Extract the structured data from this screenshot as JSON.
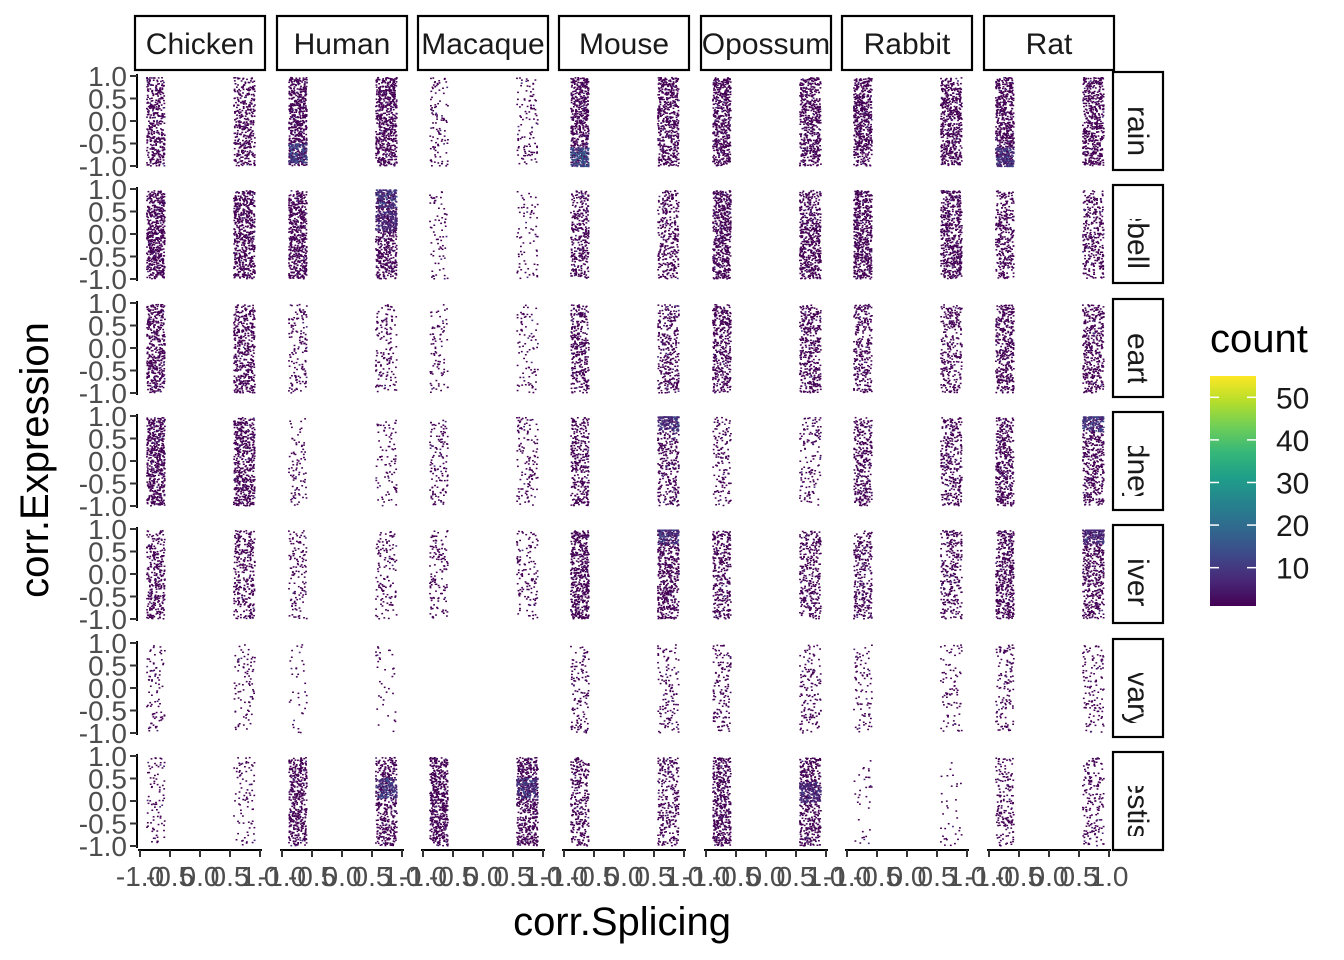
{
  "chart_data": {
    "type": "heatmap",
    "subtype": "faceted 2d histogram (geom_bin2d)",
    "xlabel": "corr.Splicing",
    "ylabel": "corr.Expression",
    "xlim": [
      -1,
      1
    ],
    "ylim": [
      -1,
      1
    ],
    "x_ticks": [
      "-1.0",
      "-0.5",
      "0.0",
      "0.5",
      "1.0"
    ],
    "y_ticks": [
      "-1.0",
      "-0.5",
      "0.0",
      "0.5",
      "1.0"
    ],
    "columns": [
      "Chicken",
      "Human",
      "Macaque",
      "Mouse",
      "Opossum",
      "Rabbit",
      "Rat"
    ],
    "rows": [
      "Brain",
      "Cerebellum",
      "Heart",
      "Kidney",
      "Liver",
      "Ovary",
      "Testis"
    ],
    "legend": {
      "title": "count",
      "position": "right",
      "ticks": [
        10,
        20,
        30,
        40,
        50
      ],
      "range": [
        1,
        55
      ],
      "palette": "viridis",
      "colors": [
        "#440154",
        "#482878",
        "#3e4989",
        "#31688e",
        "#26828e",
        "#1f9e89",
        "#35b779",
        "#6ece58",
        "#b5de2b",
        "#fde725"
      ]
    },
    "grid": false,
    "note_on_values": "Points concentrate in two vertical bands: corr.Splicing ≈ -0.9 to -0.6 and ≈ 0.55 to 0.9, spanning corr.Expression -1 to 1.",
    "bands": {
      "left": [
        -0.9,
        -0.6
      ],
      "right": [
        0.55,
        0.9
      ]
    },
    "density": [
      [
        0.55,
        0.85,
        0.15,
        0.75,
        0.75,
        0.75,
        0.75
      ],
      [
        0.8,
        0.75,
        0.1,
        0.45,
        0.75,
        0.75,
        0.45
      ],
      [
        0.6,
        0.2,
        0.12,
        0.45,
        0.55,
        0.4,
        0.55
      ],
      [
        0.75,
        0.12,
        0.18,
        0.45,
        0.2,
        0.45,
        0.55
      ],
      [
        0.45,
        0.18,
        0.18,
        0.7,
        0.45,
        0.4,
        0.6
      ],
      [
        0.12,
        0.05,
        0.0,
        0.18,
        0.2,
        0.12,
        0.18
      ],
      [
        0.12,
        0.6,
        0.75,
        0.4,
        0.65,
        0.05,
        0.25
      ]
    ],
    "hotspots": [
      {
        "row": "Brain",
        "col": "Human",
        "side": "left",
        "y": -0.7,
        "count": 15
      },
      {
        "row": "Brain",
        "col": "Mouse",
        "side": "left",
        "y": -0.8,
        "count": 18
      },
      {
        "row": "Brain",
        "col": "Rat",
        "side": "left",
        "y": -0.8,
        "count": 12
      },
      {
        "row": "Cerebellum",
        "col": "Human",
        "side": "right",
        "y": 0.8,
        "count": 14
      },
      {
        "row": "Cerebellum",
        "col": "Human",
        "side": "right",
        "y": 0.3,
        "count": 10
      },
      {
        "row": "Kidney",
        "col": "Mouse",
        "side": "right",
        "y": 0.9,
        "count": 12
      },
      {
        "row": "Kidney",
        "col": "Rat",
        "side": "right",
        "y": 0.9,
        "count": 12
      },
      {
        "row": "Liver",
        "col": "Mouse",
        "side": "right",
        "y": 0.9,
        "count": 12
      },
      {
        "row": "Liver",
        "col": "Rat",
        "side": "right",
        "y": 0.9,
        "count": 10
      },
      {
        "row": "Testis",
        "col": "Human",
        "side": "right",
        "y": 0.3,
        "count": 14
      },
      {
        "row": "Testis",
        "col": "Macaque",
        "side": "right",
        "y": 0.3,
        "count": 12
      },
      {
        "row": "Testis",
        "col": "Opossum",
        "side": "right",
        "y": 0.2,
        "count": 10
      }
    ]
  }
}
